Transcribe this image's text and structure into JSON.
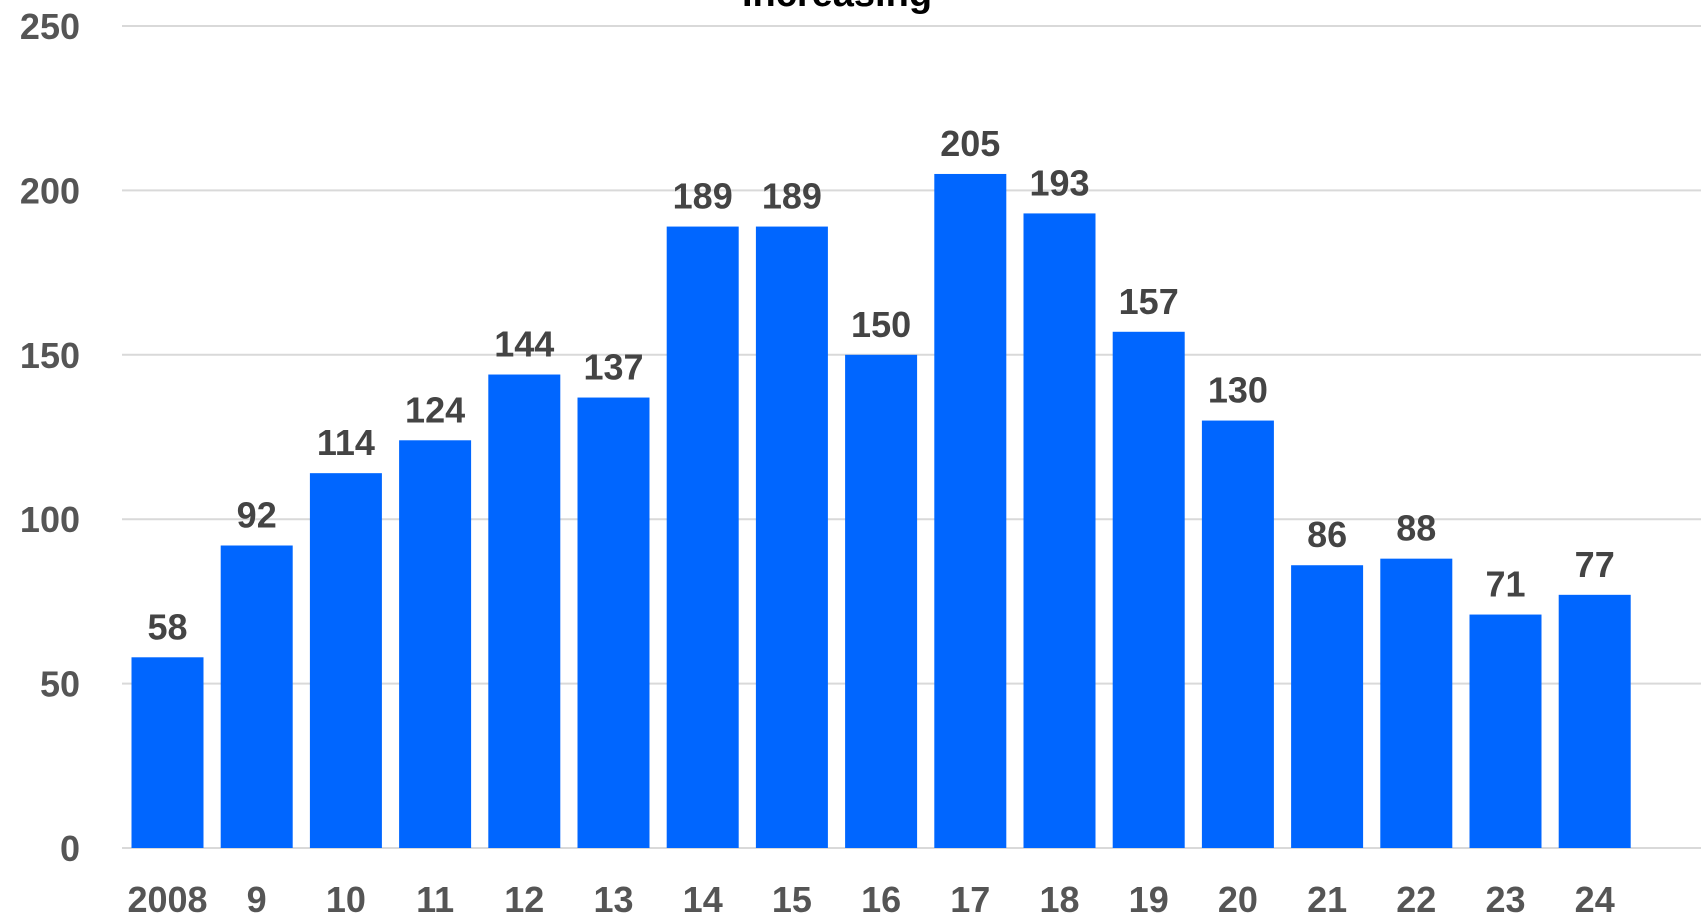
{
  "chart_data": {
    "type": "bar",
    "title": "Increasing",
    "xlabel": "",
    "ylabel": "",
    "categories": [
      "2008",
      "9",
      "10",
      "11",
      "12",
      "13",
      "14",
      "15",
      "16",
      "17",
      "18",
      "19",
      "20",
      "21",
      "22",
      "23",
      "24"
    ],
    "values": [
      58,
      92,
      114,
      124,
      144,
      137,
      189,
      189,
      150,
      205,
      193,
      157,
      130,
      86,
      88,
      71,
      77
    ],
    "data_labels": [
      "58",
      "92",
      "114",
      "124",
      "144",
      "137",
      "189",
      "189",
      "150",
      "205",
      "193",
      "157",
      "130",
      "86",
      "88",
      "71",
      "77"
    ],
    "ylim": [
      0,
      250
    ],
    "yticks": [
      0,
      50,
      100,
      150,
      200,
      250
    ],
    "ytick_labels": [
      "0",
      "50",
      "100",
      "150",
      "200",
      "250"
    ],
    "grid": true,
    "legend": "none",
    "colors": {
      "bar": "#0066ff",
      "grid": "#d9d9d9",
      "axis_text": "#555555",
      "label_text": "#444444"
    }
  }
}
